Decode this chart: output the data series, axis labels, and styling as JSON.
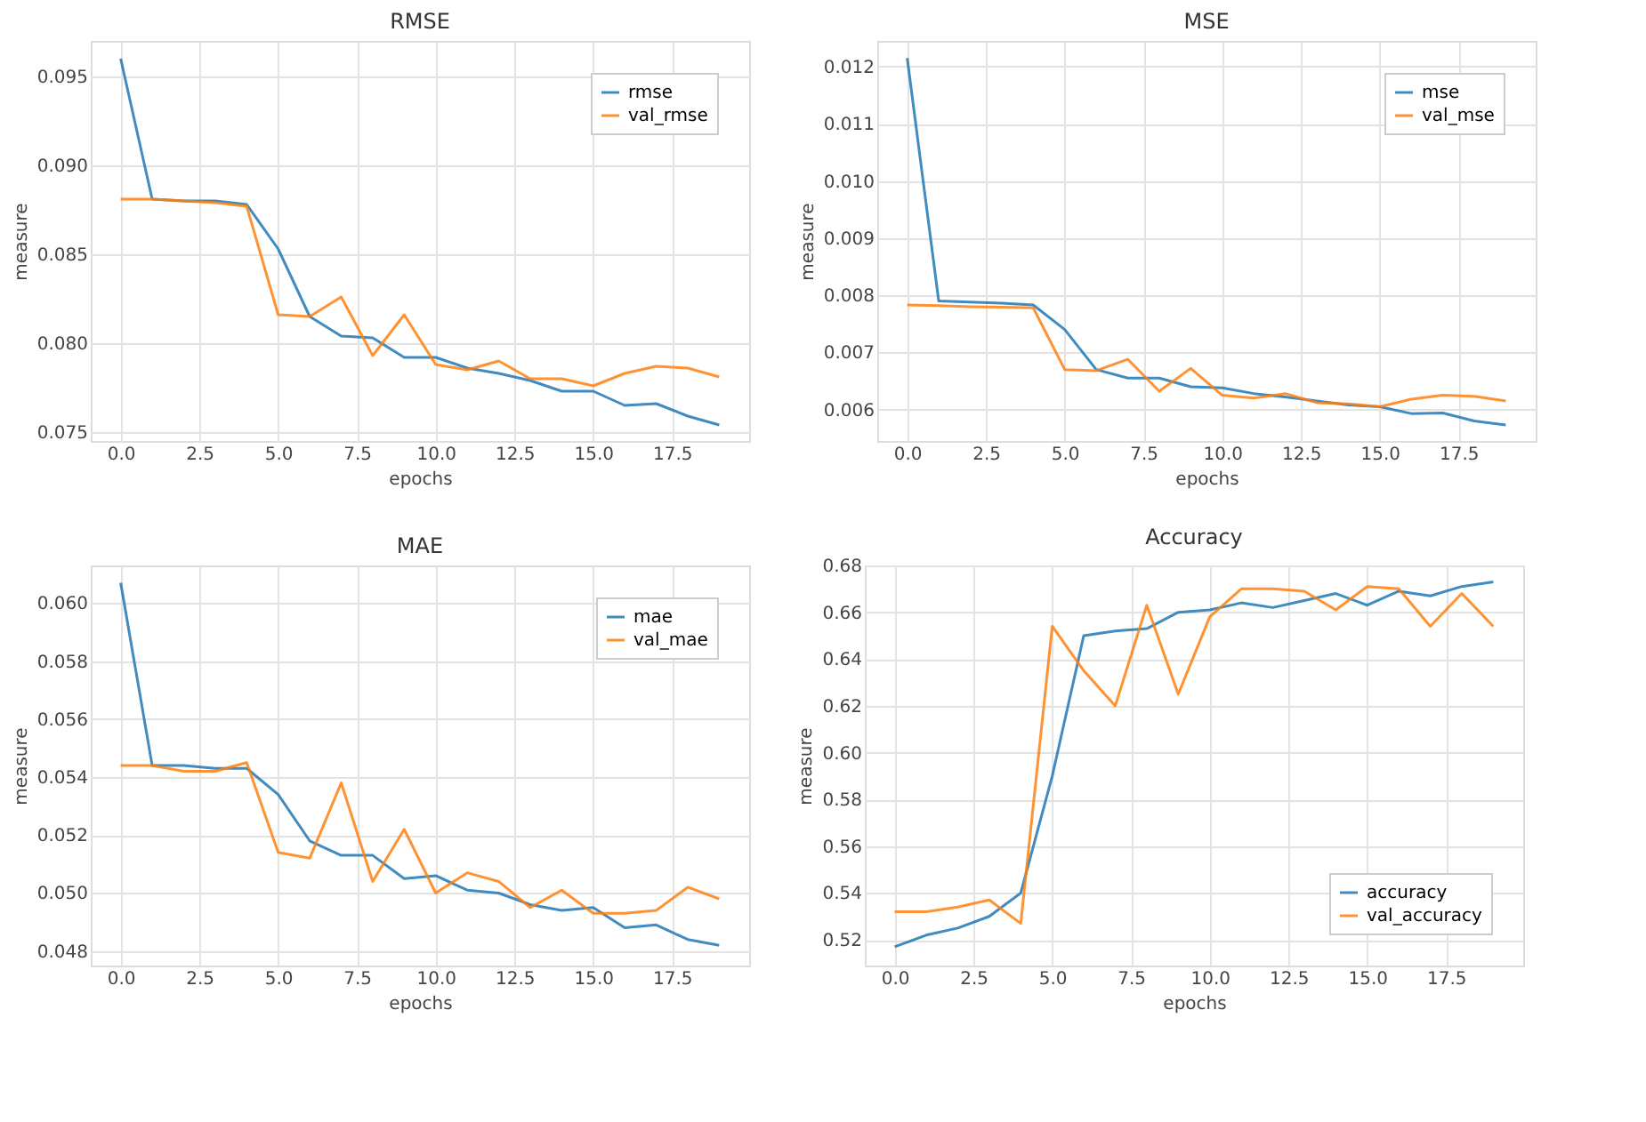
{
  "chart_data": [
    {
      "type": "line",
      "title": "RMSE",
      "xlabel": "epochs",
      "ylabel": "measure",
      "x": [
        0,
        1,
        2,
        3,
        4,
        5,
        6,
        7,
        8,
        9,
        10,
        11,
        12,
        13,
        14,
        15,
        16,
        17,
        18,
        19
      ],
      "xlim": [
        -0.95,
        19.95
      ],
      "xticks": [
        {
          "value": 0,
          "label": "0.0"
        },
        2.5,
        {
          "value": 5,
          "label": "5.0"
        },
        7.5,
        {
          "value": 10,
          "label": "10.0"
        },
        12.5,
        {
          "value": 15,
          "label": "15.0"
        },
        17.5
      ],
      "ylim": [
        0.0745,
        0.097
      ],
      "yticks": [
        {
          "value": 0.075,
          "label": "0.075"
        },
        {
          "value": 0.08,
          "label": "0.080"
        },
        {
          "value": 0.085,
          "label": "0.085"
        },
        {
          "value": 0.09,
          "label": "0.090"
        },
        {
          "value": 0.095,
          "label": "0.095"
        }
      ],
      "grid": true,
      "legend": "top right",
      "series": [
        {
          "name": "rmse",
          "color": "#1f77b4",
          "values": [
            0.096,
            0.0881,
            0.088,
            0.088,
            0.0878,
            0.0853,
            0.0815,
            0.0804,
            0.0803,
            0.0792,
            0.0792,
            0.0786,
            0.0783,
            0.0779,
            0.0773,
            0.0773,
            0.0765,
            0.0766,
            0.0759,
            0.0754
          ]
        },
        {
          "name": "val_rmse",
          "color": "#ff7f0e",
          "values": [
            0.0881,
            0.0881,
            0.088,
            0.0879,
            0.0877,
            0.0816,
            0.0815,
            0.0826,
            0.0793,
            0.0816,
            0.0788,
            0.0785,
            0.079,
            0.078,
            0.078,
            0.0776,
            0.0783,
            0.0787,
            0.0786,
            0.0781
          ]
        }
      ]
    },
    {
      "type": "line",
      "title": "MSE",
      "xlabel": "epochs",
      "ylabel": "measure",
      "x": [
        0,
        1,
        2,
        3,
        4,
        5,
        6,
        7,
        8,
        9,
        10,
        11,
        12,
        13,
        14,
        15,
        16,
        17,
        18,
        19
      ],
      "xlim": [
        -0.95,
        19.95
      ],
      "xticks": [
        {
          "value": 0,
          "label": "0.0"
        },
        2.5,
        {
          "value": 5,
          "label": "5.0"
        },
        7.5,
        {
          "value": 10,
          "label": "10.0"
        },
        12.5,
        {
          "value": 15,
          "label": "15.0"
        },
        17.5
      ],
      "ylim": [
        0.00545,
        0.01245
      ],
      "yticks": [
        {
          "value": 0.006,
          "label": "0.006"
        },
        {
          "value": 0.007,
          "label": "0.007"
        },
        {
          "value": 0.008,
          "label": "0.008"
        },
        {
          "value": 0.009,
          "label": "0.009"
        },
        {
          "value": 0.01,
          "label": "0.010"
        },
        0.011,
        0.012
      ],
      "grid": true,
      "legend": "top right",
      "series": [
        {
          "name": "mse",
          "color": "#1f77b4",
          "values": [
            0.01215,
            0.0079,
            0.00788,
            0.00786,
            0.00783,
            0.0074,
            0.0067,
            0.00655,
            0.00655,
            0.0064,
            0.00638,
            0.00628,
            0.00622,
            0.00615,
            0.00608,
            0.00605,
            0.00593,
            0.00594,
            0.0058,
            0.00573
          ]
        },
        {
          "name": "val_mse",
          "color": "#ff7f0e",
          "values": [
            0.00783,
            0.00782,
            0.0078,
            0.00779,
            0.00778,
            0.0067,
            0.00668,
            0.00688,
            0.00632,
            0.00672,
            0.00625,
            0.0062,
            0.00628,
            0.00612,
            0.0061,
            0.00605,
            0.00618,
            0.00625,
            0.00623,
            0.00615
          ]
        }
      ]
    },
    {
      "type": "line",
      "title": "MAE",
      "xlabel": "epochs",
      "ylabel": "measure",
      "x": [
        0,
        1,
        2,
        3,
        4,
        5,
        6,
        7,
        8,
        9,
        10,
        11,
        12,
        13,
        14,
        15,
        16,
        17,
        18,
        19
      ],
      "xlim": [
        -0.95,
        19.95
      ],
      "xticks": [
        {
          "value": 0,
          "label": "0.0"
        },
        2.5,
        {
          "value": 5,
          "label": "5.0"
        },
        7.5,
        {
          "value": 10,
          "label": "10.0"
        },
        12.5,
        {
          "value": 15,
          "label": "15.0"
        },
        17.5
      ],
      "ylim": [
        0.0475,
        0.0613
      ],
      "yticks": [
        0.048,
        {
          "value": 0.05,
          "label": "0.050"
        },
        0.052,
        0.054,
        0.056,
        0.058,
        {
          "value": 0.06,
          "label": "0.060"
        }
      ],
      "grid": true,
      "legend": "top right",
      "series": [
        {
          "name": "mae",
          "color": "#1f77b4",
          "values": [
            0.0607,
            0.0544,
            0.0544,
            0.0543,
            0.0543,
            0.0534,
            0.0518,
            0.0513,
            0.0513,
            0.0505,
            0.0506,
            0.0501,
            0.05,
            0.0496,
            0.0494,
            0.0495,
            0.0488,
            0.0489,
            0.0484,
            0.0482
          ]
        },
        {
          "name": "val_mae",
          "color": "#ff7f0e",
          "values": [
            0.0544,
            0.0544,
            0.0542,
            0.0542,
            0.0545,
            0.0514,
            0.0512,
            0.0538,
            0.0504,
            0.0522,
            0.05,
            0.0507,
            0.0504,
            0.0495,
            0.0501,
            0.0493,
            0.0493,
            0.0494,
            0.0502,
            0.0498
          ]
        }
      ]
    },
    {
      "type": "line",
      "title": "Accuracy",
      "xlabel": "epochs",
      "ylabel": "measure",
      "x": [
        0,
        1,
        2,
        3,
        4,
        5,
        6,
        7,
        8,
        9,
        10,
        11,
        12,
        13,
        14,
        15,
        16,
        17,
        18,
        19
      ],
      "xlim": [
        -0.95,
        19.95
      ],
      "xticks": [
        {
          "value": 0,
          "label": "0.0"
        },
        2.5,
        {
          "value": 5,
          "label": "5.0"
        },
        7.5,
        {
          "value": 10,
          "label": "10.0"
        },
        12.5,
        {
          "value": 15,
          "label": "15.0"
        },
        17.5
      ],
      "ylim": [
        0.509,
        0.68
      ],
      "yticks": [
        0.52,
        0.54,
        0.56,
        0.58,
        {
          "value": 0.6,
          "label": "0.60"
        },
        0.62,
        0.64,
        0.66,
        {
          "value": 0.68,
          "label": "0.68"
        }
      ],
      "grid": true,
      "legend": "bottom right",
      "series": [
        {
          "name": "accuracy",
          "color": "#1f77b4",
          "values": [
            0.517,
            0.522,
            0.525,
            0.53,
            0.54,
            0.59,
            0.65,
            0.652,
            0.653,
            0.66,
            0.661,
            0.664,
            0.662,
            0.665,
            0.668,
            0.663,
            0.669,
            0.667,
            0.671,
            0.673
          ]
        },
        {
          "name": "val_accuracy",
          "color": "#ff7f0e",
          "values": [
            0.532,
            0.532,
            0.534,
            0.537,
            0.527,
            0.654,
            0.635,
            0.62,
            0.663,
            0.625,
            0.658,
            0.67,
            0.67,
            0.669,
            0.661,
            0.671,
            0.67,
            0.654,
            0.668,
            0.654
          ]
        }
      ]
    }
  ]
}
